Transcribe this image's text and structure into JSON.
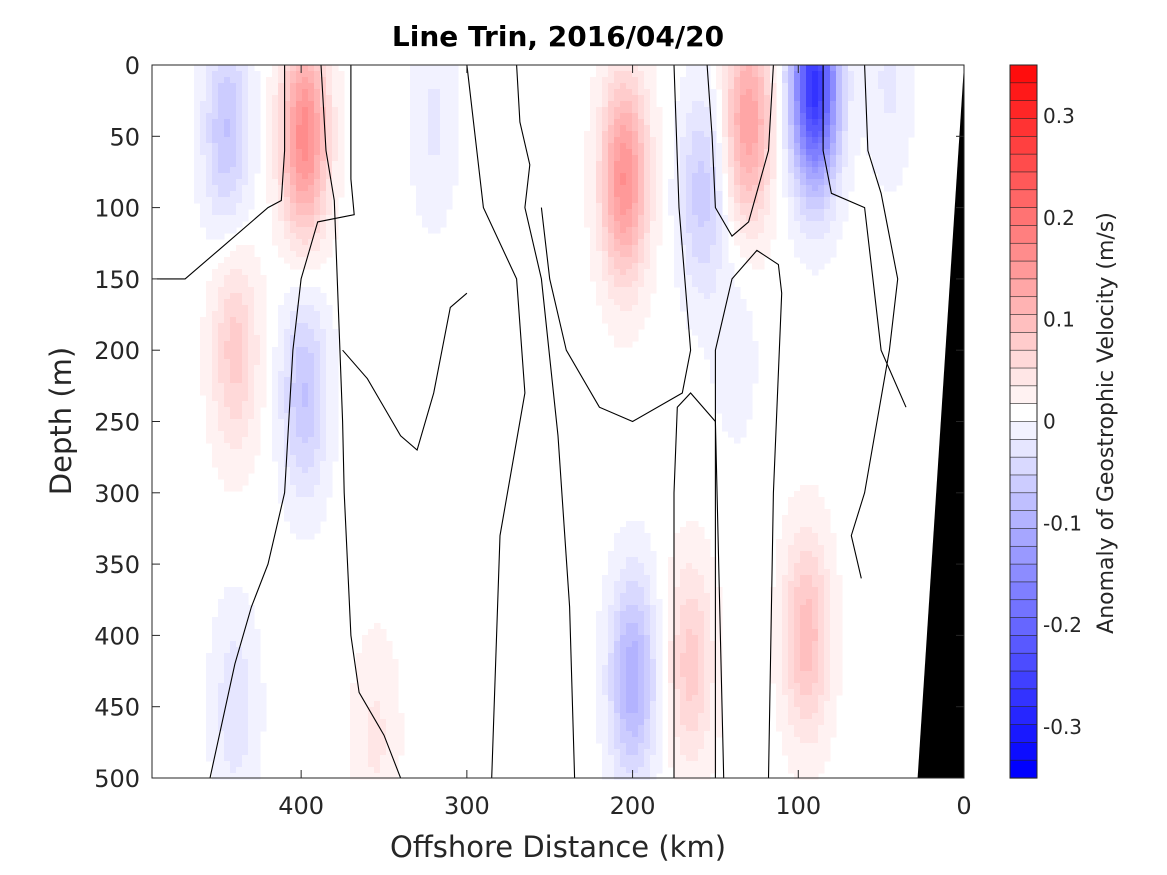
{
  "chart_data": {
    "type": "heatmap",
    "title": "Line Trin, 2016/04/20",
    "xlabel": "Offshore Distance (km)",
    "ylabel": "Depth (m)",
    "colorbar_label": "Anomaly of Geostrophic Velocity (m/s)",
    "xlim": [
      490,
      0
    ],
    "ylim": [
      500,
      0
    ],
    "xticks": [
      400,
      300,
      200,
      100,
      0
    ],
    "yticks": [
      0,
      50,
      100,
      150,
      200,
      250,
      300,
      350,
      400,
      450,
      500
    ],
    "clim": [
      -0.35,
      0.35
    ],
    "cticks": [
      0.3,
      0.2,
      0.1,
      0,
      -0.1,
      -0.2,
      -0.3
    ],
    "contour_step": 0.0175,
    "colormap": "blue-white-red",
    "features": [
      {
        "type": "negative",
        "x": 445,
        "y": 45,
        "peak": -0.08
      },
      {
        "type": "positive",
        "x": 398,
        "y": 50,
        "peak": 0.16
      },
      {
        "type": "positive",
        "x": 440,
        "y": 200,
        "peak": 0.07
      },
      {
        "type": "negative",
        "x": 398,
        "y": 230,
        "peak": -0.08
      },
      {
        "type": "negative",
        "x": 320,
        "y": 40,
        "peak": -0.03
      },
      {
        "type": "negative",
        "x": 440,
        "y": 450,
        "peak": -0.04
      },
      {
        "type": "positive",
        "x": 355,
        "y": 470,
        "peak": 0.03
      },
      {
        "type": "positive",
        "x": 205,
        "y": 80,
        "peak": 0.15
      },
      {
        "type": "negative",
        "x": 158,
        "y": 90,
        "peak": -0.07
      },
      {
        "type": "positive",
        "x": 130,
        "y": 40,
        "peak": 0.13
      },
      {
        "type": "negative",
        "x": 90,
        "y": 15,
        "peak": -0.28
      },
      {
        "type": "negative",
        "x": 45,
        "y": 10,
        "peak": -0.03
      },
      {
        "type": "negative",
        "x": 200,
        "y": 430,
        "peak": -0.11
      },
      {
        "type": "positive",
        "x": 165,
        "y": 420,
        "peak": 0.07
      },
      {
        "type": "negative",
        "x": 138,
        "y": 200,
        "peak": -0.02
      },
      {
        "type": "positive",
        "x": 95,
        "y": 400,
        "peak": 0.09
      }
    ],
    "bathymetry_color": "#000000"
  }
}
